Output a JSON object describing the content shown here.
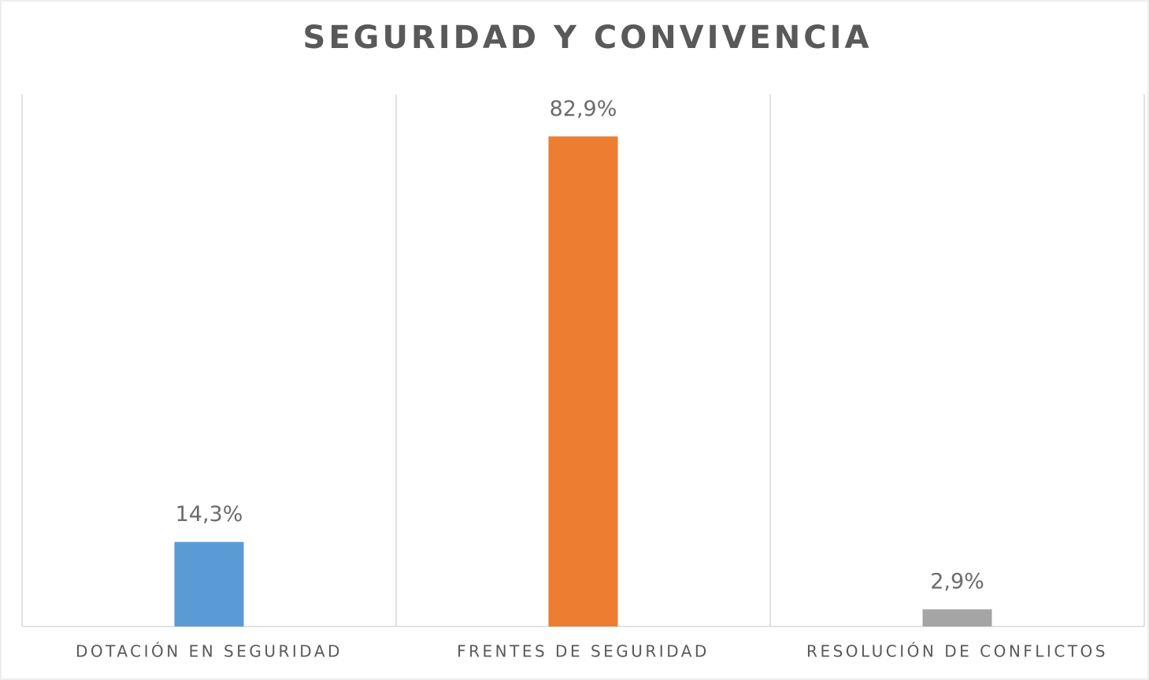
{
  "chart_data": {
    "type": "bar",
    "title": "SEGURIDAD Y CONVIVENCIA",
    "categories": [
      "DOTACIÓN EN SEGURIDAD",
      "FRENTES DE SEGURIDAD",
      "RESOLUCIÓN DE CONFLICTOS"
    ],
    "values": [
      14.3,
      82.9,
      2.9
    ],
    "value_labels": [
      "14,3%",
      "82,9%",
      "2,9%"
    ],
    "colors": [
      "#5b9bd5",
      "#ed7d31",
      "#a5a5a5"
    ],
    "ylim": [
      0,
      90
    ]
  }
}
